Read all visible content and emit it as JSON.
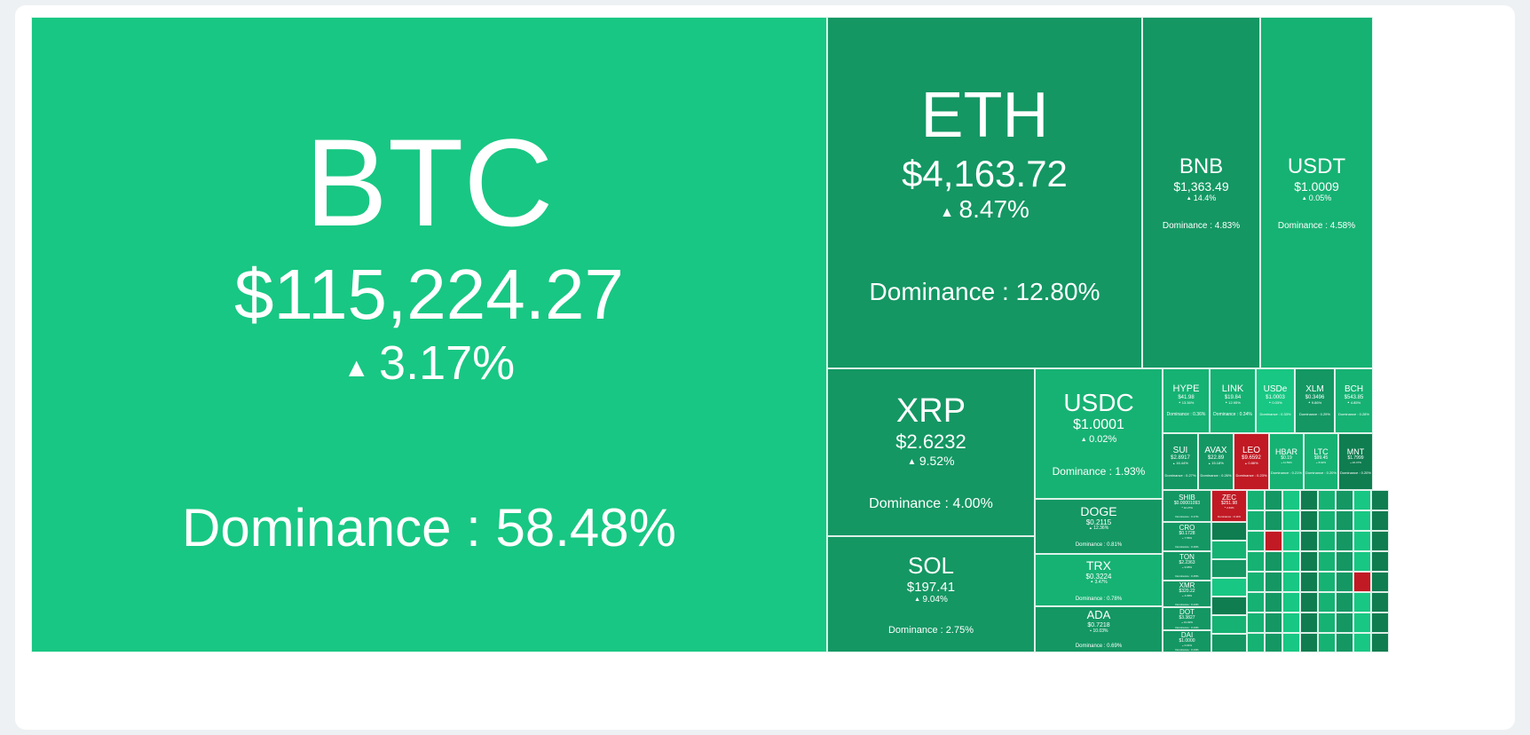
{
  "colors": {
    "strong_green": "#18c783",
    "medium_green": "#16b273",
    "dark_green": "#149763",
    "deep_green": "#0f7d50",
    "red": "#c11a24",
    "background": "#eef1f3"
  },
  "labels": {
    "up_arrow": "▲",
    "dominance_prefix": "Dominance : "
  },
  "coins": [
    {
      "symbol": "BTC",
      "price": "$115,224.27",
      "change": "3.17%",
      "dominance": "58.48%"
    },
    {
      "symbol": "ETH",
      "price": "$4,163.72",
      "change": "8.47%",
      "dominance": "12.80%"
    },
    {
      "symbol": "BNB",
      "price": "$1,363.49",
      "change": "14.4%",
      "dominance": "4.83%"
    },
    {
      "symbol": "USDT",
      "price": "$1.0009",
      "change": "0.05%",
      "dominance": "4.58%"
    },
    {
      "symbol": "XRP",
      "price": "$2.6232",
      "change": "9.52%",
      "dominance": "4.00%"
    },
    {
      "symbol": "SOL",
      "price": "$197.41",
      "change": "9.04%",
      "dominance": "2.75%"
    },
    {
      "symbol": "USDC",
      "price": "$1.0001",
      "change": "0.02%",
      "dominance": "1.93%"
    },
    {
      "symbol": "DOGE",
      "price": "$0.2115",
      "change": "12.36%",
      "dominance": "0.81%"
    },
    {
      "symbol": "TRX",
      "price": "$0.3224",
      "change": "3.47%",
      "dominance": "0.78%"
    },
    {
      "symbol": "ADA",
      "price": "$0.7218",
      "change": "10.03%",
      "dominance": "0.69%"
    },
    {
      "symbol": "HYPE",
      "price": "$41.98",
      "change": "13.36%",
      "dominance": "0.36%"
    },
    {
      "symbol": "LINK",
      "price": "$19.84",
      "change": "12.95%",
      "dominance": "0.34%"
    },
    {
      "symbol": "USDe",
      "price": "$1.0003",
      "change": "0.03%",
      "dominance": "0.33%"
    },
    {
      "symbol": "XLM",
      "price": "$0.3496",
      "change": "9.86%",
      "dominance": "0.29%"
    },
    {
      "symbol": "BCH",
      "price": "$543.85",
      "change": "4.85%",
      "dominance": "0.28%"
    },
    {
      "symbol": "SUI",
      "price": "$2.8917",
      "change": "16.44%",
      "dominance": "0.27%"
    },
    {
      "symbol": "AVAX",
      "price": "$22.89",
      "change": "15.18%",
      "dominance": "0.26%"
    },
    {
      "symbol": "LEO",
      "price": "$9.6592",
      "change": "0.86%",
      "dominance": "0.23%"
    },
    {
      "symbol": "HBAR",
      "price": "$0.19",
      "change": "11.59%",
      "dominance": "0.21%"
    },
    {
      "symbol": "LTC",
      "price": "$99.45",
      "change": "8.92%",
      "dominance": "0.20%"
    },
    {
      "symbol": "MNT",
      "price": "$1.7999",
      "change": "22.47%",
      "dominance": "0.20%"
    },
    {
      "symbol": "SHIB",
      "price": "$0.00001093",
      "change": "10.27%",
      "dominance": "0.17%"
    },
    {
      "symbol": "ZEC",
      "price": "$251.98",
      "change": "2.63%",
      "dominance": "0.11%"
    },
    {
      "symbol": "CRO",
      "price": "$0.1728",
      "change": "7.56%",
      "dominance": "0.16%"
    },
    {
      "symbol": "TON",
      "price": "$2.2363",
      "change": "9.65%",
      "dominance": "0.15%"
    },
    {
      "symbol": "XMR",
      "price": "$320.22",
      "change": "4.09%",
      "dominance": "0.14%"
    },
    {
      "symbol": "DOT",
      "price": "$3.3827",
      "change": "13.02%",
      "dominance": "0.13%"
    },
    {
      "symbol": "DAI",
      "price": "$1.0000",
      "change": "0.01%",
      "dominance": "0.13%"
    }
  ]
}
